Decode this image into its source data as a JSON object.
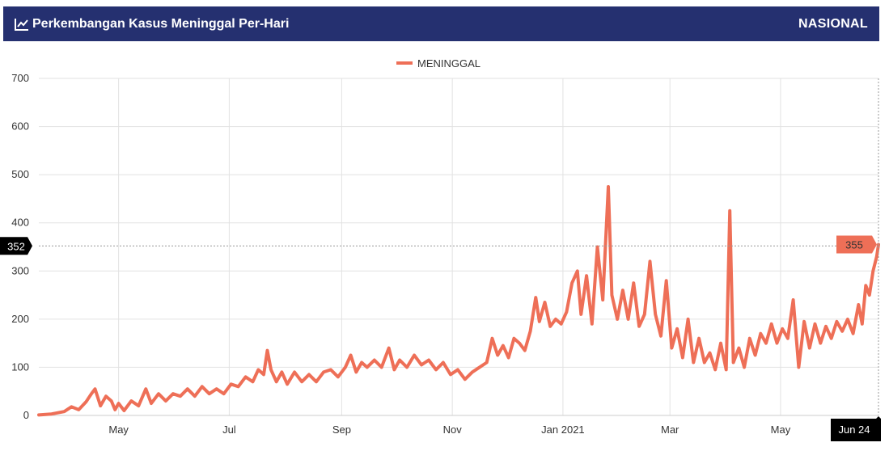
{
  "header": {
    "title": "Perkembangan Kasus Meninggal Per-Hari",
    "scope": "NASIONAL",
    "icon": "line-chart-icon",
    "background": "#253070"
  },
  "chart_data": {
    "type": "line",
    "title": "Perkembangan Kasus Meninggal Per-Hari",
    "series": [
      {
        "name": "MENINGGAL",
        "color": "#ee6f57",
        "points": [
          [
            "2020-03-18",
            1
          ],
          [
            "2020-03-25",
            3
          ],
          [
            "2020-04-01",
            8
          ],
          [
            "2020-04-05",
            18
          ],
          [
            "2020-04-09",
            12
          ],
          [
            "2020-04-13",
            28
          ],
          [
            "2020-04-16",
            45
          ],
          [
            "2020-04-18",
            55
          ],
          [
            "2020-04-21",
            20
          ],
          [
            "2020-04-24",
            40
          ],
          [
            "2020-04-27",
            30
          ],
          [
            "2020-04-29",
            12
          ],
          [
            "2020-05-01",
            25
          ],
          [
            "2020-05-04",
            10
          ],
          [
            "2020-05-08",
            30
          ],
          [
            "2020-05-12",
            20
          ],
          [
            "2020-05-16",
            55
          ],
          [
            "2020-05-19",
            25
          ],
          [
            "2020-05-23",
            45
          ],
          [
            "2020-05-27",
            30
          ],
          [
            "2020-05-31",
            45
          ],
          [
            "2020-06-04",
            40
          ],
          [
            "2020-06-08",
            55
          ],
          [
            "2020-06-12",
            40
          ],
          [
            "2020-06-16",
            60
          ],
          [
            "2020-06-20",
            45
          ],
          [
            "2020-06-24",
            55
          ],
          [
            "2020-06-28",
            45
          ],
          [
            "2020-07-02",
            65
          ],
          [
            "2020-07-06",
            60
          ],
          [
            "2020-07-10",
            80
          ],
          [
            "2020-07-14",
            70
          ],
          [
            "2020-07-17",
            95
          ],
          [
            "2020-07-20",
            85
          ],
          [
            "2020-07-22",
            135
          ],
          [
            "2020-07-24",
            95
          ],
          [
            "2020-07-27",
            70
          ],
          [
            "2020-07-30",
            90
          ],
          [
            "2020-08-02",
            65
          ],
          [
            "2020-08-06",
            90
          ],
          [
            "2020-08-10",
            70
          ],
          [
            "2020-08-14",
            85
          ],
          [
            "2020-08-18",
            70
          ],
          [
            "2020-08-22",
            90
          ],
          [
            "2020-08-26",
            95
          ],
          [
            "2020-08-30",
            80
          ],
          [
            "2020-09-03",
            100
          ],
          [
            "2020-09-06",
            125
          ],
          [
            "2020-09-09",
            90
          ],
          [
            "2020-09-12",
            110
          ],
          [
            "2020-09-15",
            100
          ],
          [
            "2020-09-19",
            115
          ],
          [
            "2020-09-23",
            100
          ],
          [
            "2020-09-27",
            140
          ],
          [
            "2020-09-30",
            95
          ],
          [
            "2020-10-03",
            115
          ],
          [
            "2020-10-07",
            100
          ],
          [
            "2020-10-11",
            125
          ],
          [
            "2020-10-15",
            105
          ],
          [
            "2020-10-19",
            115
          ],
          [
            "2020-10-23",
            95
          ],
          [
            "2020-10-27",
            110
          ],
          [
            "2020-10-31",
            85
          ],
          [
            "2020-11-04",
            95
          ],
          [
            "2020-11-08",
            75
          ],
          [
            "2020-11-12",
            90
          ],
          [
            "2020-11-16",
            100
          ],
          [
            "2020-11-20",
            110
          ],
          [
            "2020-11-23",
            160
          ],
          [
            "2020-11-26",
            125
          ],
          [
            "2020-11-29",
            145
          ],
          [
            "2020-12-02",
            120
          ],
          [
            "2020-12-05",
            160
          ],
          [
            "2020-12-08",
            150
          ],
          [
            "2020-12-11",
            135
          ],
          [
            "2020-12-14",
            175
          ],
          [
            "2020-12-17",
            245
          ],
          [
            "2020-12-19",
            195
          ],
          [
            "2020-12-22",
            235
          ],
          [
            "2020-12-25",
            185
          ],
          [
            "2020-12-28",
            200
          ],
          [
            "2020-12-31",
            190
          ],
          [
            "2021-01-03",
            215
          ],
          [
            "2021-01-06",
            275
          ],
          [
            "2021-01-09",
            300
          ],
          [
            "2021-01-11",
            210
          ],
          [
            "2021-01-14",
            290
          ],
          [
            "2021-01-17",
            190
          ],
          [
            "2021-01-20",
            350
          ],
          [
            "2021-01-23",
            240
          ],
          [
            "2021-01-26",
            475
          ],
          [
            "2021-01-28",
            250
          ],
          [
            "2021-01-31",
            200
          ],
          [
            "2021-02-03",
            260
          ],
          [
            "2021-02-06",
            200
          ],
          [
            "2021-02-09",
            275
          ],
          [
            "2021-02-12",
            185
          ],
          [
            "2021-02-15",
            210
          ],
          [
            "2021-02-18",
            320
          ],
          [
            "2021-02-21",
            210
          ],
          [
            "2021-02-24",
            165
          ],
          [
            "2021-02-27",
            280
          ],
          [
            "2021-03-02",
            140
          ],
          [
            "2021-03-05",
            180
          ],
          [
            "2021-03-08",
            120
          ],
          [
            "2021-03-11",
            200
          ],
          [
            "2021-03-14",
            110
          ],
          [
            "2021-03-17",
            160
          ],
          [
            "2021-03-20",
            110
          ],
          [
            "2021-03-23",
            130
          ],
          [
            "2021-03-26",
            95
          ],
          [
            "2021-03-29",
            150
          ],
          [
            "2021-04-01",
            95
          ],
          [
            "2021-04-03",
            425
          ],
          [
            "2021-04-05",
            110
          ],
          [
            "2021-04-08",
            140
          ],
          [
            "2021-04-11",
            100
          ],
          [
            "2021-04-14",
            160
          ],
          [
            "2021-04-17",
            125
          ],
          [
            "2021-04-20",
            170
          ],
          [
            "2021-04-23",
            150
          ],
          [
            "2021-04-26",
            190
          ],
          [
            "2021-04-29",
            150
          ],
          [
            "2021-05-02",
            180
          ],
          [
            "2021-05-05",
            160
          ],
          [
            "2021-05-08",
            240
          ],
          [
            "2021-05-11",
            100
          ],
          [
            "2021-05-14",
            195
          ],
          [
            "2021-05-17",
            140
          ],
          [
            "2021-05-20",
            190
          ],
          [
            "2021-05-23",
            150
          ],
          [
            "2021-05-26",
            185
          ],
          [
            "2021-05-29",
            160
          ],
          [
            "2021-06-01",
            195
          ],
          [
            "2021-06-04",
            175
          ],
          [
            "2021-06-07",
            200
          ],
          [
            "2021-06-10",
            170
          ],
          [
            "2021-06-13",
            230
          ],
          [
            "2021-06-15",
            190
          ],
          [
            "2021-06-17",
            270
          ],
          [
            "2021-06-19",
            250
          ],
          [
            "2021-06-21",
            300
          ],
          [
            "2021-06-23",
            330
          ],
          [
            "2021-06-24",
            355
          ]
        ]
      }
    ],
    "x_domain": [
      "2020-03-18",
      "2021-06-24"
    ],
    "x_ticks": [
      {
        "date": "2020-05-01",
        "label": "May"
      },
      {
        "date": "2020-07-01",
        "label": "Jul"
      },
      {
        "date": "2020-09-01",
        "label": "Sep"
      },
      {
        "date": "2020-11-01",
        "label": "Nov"
      },
      {
        "date": "2021-01-01",
        "label": "Jan 2021"
      },
      {
        "date": "2021-03-01",
        "label": "Mar"
      },
      {
        "date": "2021-05-01",
        "label": "May"
      }
    ],
    "ylim": [
      0,
      700
    ],
    "y_ticks": [
      0,
      100,
      200,
      300,
      400,
      500,
      600,
      700
    ],
    "grid": true,
    "legend": "top-center",
    "crosshair": {
      "date_label": "Jun 24",
      "y_label": "352",
      "value_label": "355"
    }
  }
}
